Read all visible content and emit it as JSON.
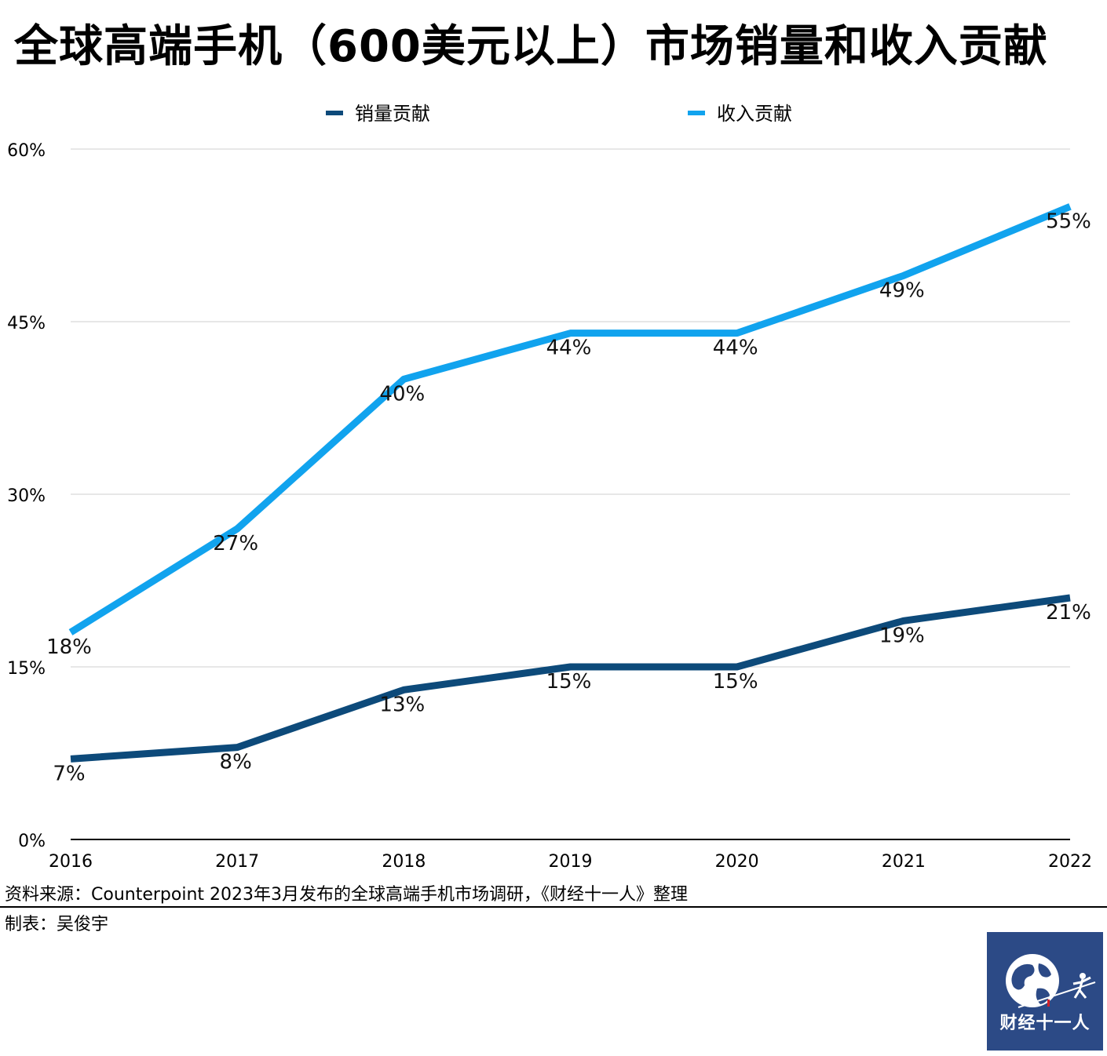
{
  "title": "全球高端手机（600美元以上）市场销量和收入贡献",
  "chart_data": {
    "type": "line",
    "categories": [
      "2016",
      "2017",
      "2018",
      "2019",
      "2020",
      "2021",
      "2022"
    ],
    "series": [
      {
        "name": "销量贡献",
        "color": "#0d4a7a",
        "values": [
          7,
          8,
          13,
          15,
          15,
          19,
          21
        ]
      },
      {
        "name": "收入贡献",
        "color": "#11a3ee",
        "values": [
          18,
          27,
          40,
          44,
          44,
          49,
          55
        ]
      }
    ],
    "value_suffix": "%",
    "yticks": [
      "0%",
      "15%",
      "30%",
      "45%",
      "60%"
    ],
    "ylim": [
      0,
      60
    ],
    "grid": true,
    "legend": "top-center"
  },
  "footer": {
    "source": "资料来源：Counterpoint 2023年3月发布的全球高端手机市场调研，《财经十一人》整理",
    "credit": "制表：吴俊宇"
  },
  "logo": {
    "text": "财经十一人"
  }
}
